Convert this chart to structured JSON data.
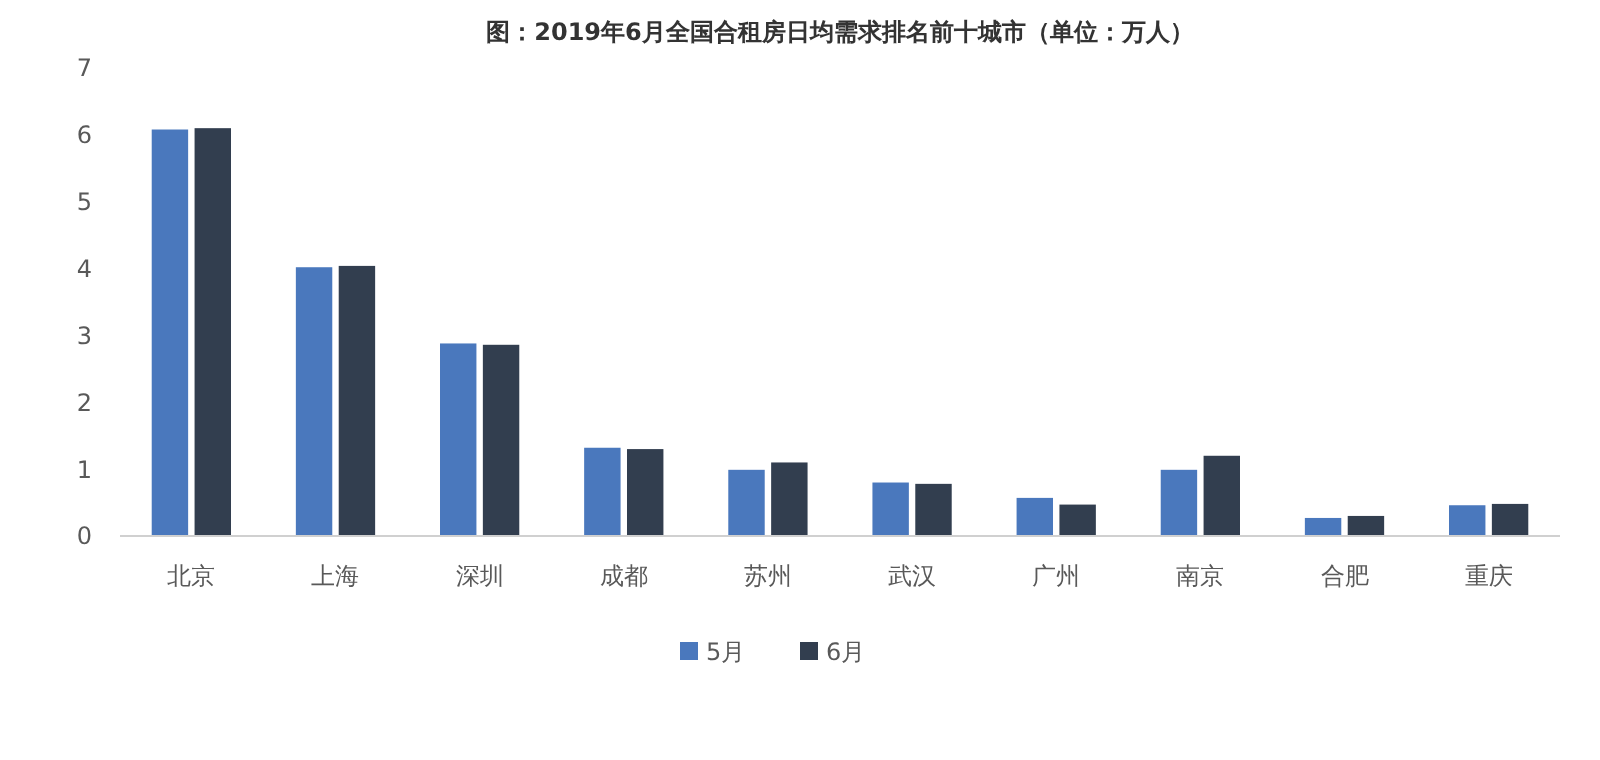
{
  "chart_data": {
    "type": "bar",
    "title": "图：2019年6月全国合租房日均需求排名前十城市（单位：万人）",
    "categories": [
      "北京",
      "上海",
      "深圳",
      "成都",
      "苏州",
      "武汉",
      "广州",
      "南京",
      "合肥",
      "重庆"
    ],
    "series": [
      {
        "name": "5月",
        "color": "#4a78bd",
        "values": [
          6.08,
          4.02,
          2.88,
          1.32,
          0.99,
          0.8,
          0.57,
          0.99,
          0.27,
          0.46
        ]
      },
      {
        "name": "6月",
        "color": "#323e4f",
        "values": [
          6.1,
          4.04,
          2.86,
          1.3,
          1.1,
          0.78,
          0.47,
          1.2,
          0.3,
          0.48
        ]
      }
    ],
    "ylim": [
      0,
      7
    ],
    "yticks": [
      0,
      1,
      2,
      3,
      4,
      5,
      6,
      7
    ],
    "grid": false,
    "legend": "bottom"
  }
}
